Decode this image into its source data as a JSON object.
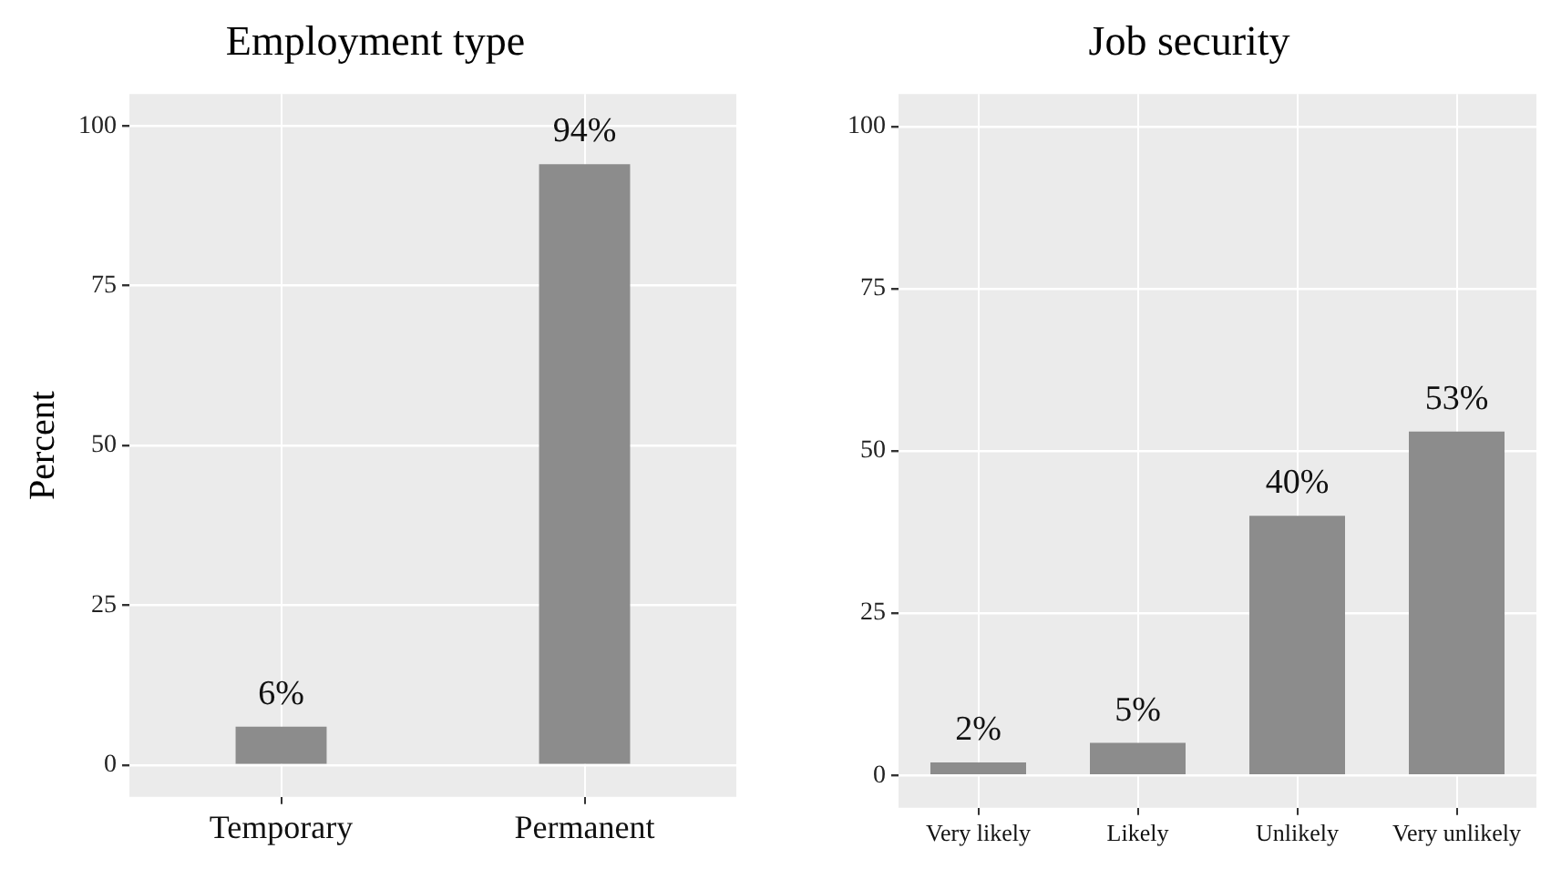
{
  "chart_data": [
    {
      "type": "bar",
      "title": "Employment type",
      "ylabel": "Percent",
      "categories": [
        "Temporary",
        "Permanent"
      ],
      "values": [
        6,
        94
      ],
      "value_labels": [
        "6%",
        "94%"
      ],
      "color": "#8c8c8c",
      "ylim": [
        -5,
        105
      ],
      "yticks": [
        0,
        25,
        50,
        75,
        100
      ],
      "grid": true
    },
    {
      "type": "bar",
      "title": "Job security",
      "categories": [
        "Very likely",
        "Likely",
        "Unlikely",
        "Very unlikely"
      ],
      "values": [
        2,
        5,
        40,
        53
      ],
      "value_labels": [
        "2%",
        "5%",
        "40%",
        "53%"
      ],
      "color": "#8c8c8c",
      "ylim": [
        -5,
        105
      ],
      "yticks": [
        0,
        25,
        50,
        75,
        100
      ],
      "grid": true
    }
  ]
}
